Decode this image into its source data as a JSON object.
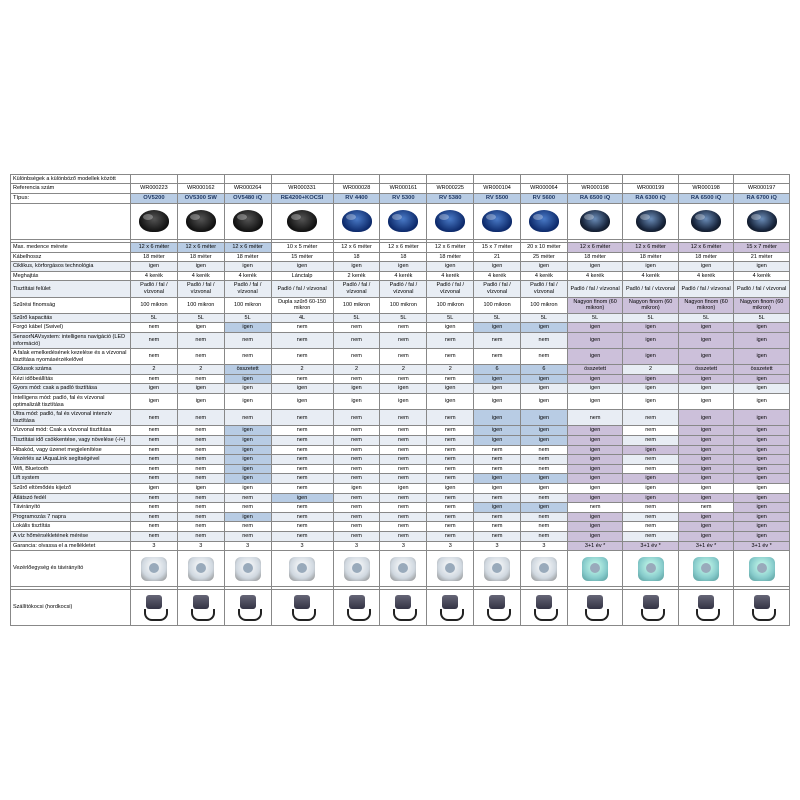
{
  "title_row": "Különbségek a különböző modellek között",
  "header_rows": [
    {
      "label": "Referencia szám",
      "vals": [
        "WR000223",
        "WR000162",
        "WR000264",
        "WR000331",
        "WR000028",
        "WR000161",
        "WR000225",
        "WR000104",
        "WR000064",
        "WR000198",
        "WR000199",
        "WR000198",
        "WR000197"
      ]
    },
    {
      "label": "Típus:",
      "vals": [
        "OV5200",
        "OV5300 SW",
        "OV5480 iQ",
        "RE4200+KOCSI",
        "RV 4400",
        "RV 5300",
        "RV 5380",
        "RV 5500",
        "RV 5600",
        "RA 6500 iQ",
        "RA 6300 iQ",
        "RA 6500 iQ",
        "RA 6700 iQ"
      ],
      "model": true
    }
  ],
  "robot_variants": [
    "dark",
    "dark",
    "dark",
    "dark",
    "blue",
    "blue",
    "blue",
    "blue",
    "blue",
    "",
    "",
    "",
    ""
  ],
  "spec_rows": [
    {
      "label": "Max. medence mérete",
      "vals": [
        "12 x 6 méter",
        "12 x 6 méter",
        "12 x 6 méter",
        "10 x 5 méter",
        "12 x 6 méter",
        "12 x 6 méter",
        "12 x 6 méter",
        "15 x 7 méter",
        "20 x 10 méter",
        "12 x 6 méter",
        "12 x 6 méter",
        "12 x 6 méter",
        "15 x 7 méter"
      ],
      "hl": {
        "0": "blue",
        "1": "blue",
        "2": "blue",
        "9": "lav",
        "10": "lav",
        "11": "lav",
        "12": "lav"
      }
    },
    {
      "label": "Kábelhossz",
      "vals": [
        "18 méter",
        "18 méter",
        "18 méter",
        "15 méter",
        "18",
        "18",
        "18 méter",
        "21",
        "25 méter",
        "18 méter",
        "18 méter",
        "18 méter",
        "21 méter"
      ]
    },
    {
      "label": "Ciklikus, körforgásos technológia",
      "vals": [
        "igen",
        "igen",
        "igen",
        "igen",
        "igen",
        "igen",
        "igen",
        "igen",
        "igen",
        "igen",
        "igen",
        "igen",
        "igen"
      ],
      "stripe": true
    },
    {
      "label": "Meghajtás",
      "vals": [
        "4 kerék",
        "4 kerék",
        "4 kerék",
        "Lánctalp",
        "2 kerék",
        "4 kerék",
        "4 kerék",
        "4 kerék",
        "4 kerék",
        "4 kerék",
        "4 kerék",
        "4 kerék",
        "4 kerék"
      ]
    },
    {
      "label": "Tisztítási felület",
      "vals": [
        "Padló / fal / vízvonal",
        "Padló / fal / vízvonal",
        "Padló / fal / vízvonal",
        "Padló / fal / vízvonal",
        "Padló / fal / vízvonal",
        "Padló / fal / vízvonal",
        "Padló / fal / vízvonal",
        "Padló / fal / vízvonal",
        "Padló / fal / vízvonal",
        "Padló / fal / vízvonal",
        "Padló / fal / vízvonal",
        "Padló / fal / vízvonal",
        "Padló / fal / vízvonal"
      ],
      "stripe": true
    },
    {
      "label": "Szűrési finomság",
      "vals": [
        "100 mikron",
        "100 mikron",
        "100 mikron",
        "Dupla szűrő 60-150 mikron",
        "100 mikron",
        "100 mikron",
        "100 mikron",
        "100 mikron",
        "100 mikron",
        "Nagyon finom (60 mikron)",
        "Nagyon finom (60 mikron)",
        "Nagyon finom (60 mikron)",
        "Nagyon finom (60 mikron)"
      ],
      "hl": {
        "9": "lav",
        "10": "lav",
        "11": "lav",
        "12": "lav"
      }
    },
    {
      "label": "Szűrő kapacitás",
      "vals": [
        "5L",
        "5L",
        "5L",
        "4L",
        "5L",
        "5L",
        "5L",
        "5L",
        "5L",
        "5L",
        "5L",
        "5L",
        "5L"
      ],
      "stripe": true
    },
    {
      "label": "Forgó kábel (Swivel)",
      "vals": [
        "nem",
        "igen",
        "igen",
        "nem",
        "nem",
        "nem",
        "igen",
        "igen",
        "igen",
        "igen",
        "igen",
        "igen",
        "igen"
      ],
      "hl": {
        "2": "blue",
        "7": "blue",
        "8": "blue",
        "9": "lav",
        "10": "lav",
        "11": "lav",
        "12": "lav"
      }
    },
    {
      "label": "SensorNAVsystem: intelligens navigáció (LED információ)",
      "vals": [
        "nem",
        "nem",
        "nem",
        "nem",
        "nem",
        "nem",
        "nem",
        "nem",
        "nem",
        "igen",
        "igen",
        "igen",
        "igen"
      ],
      "hl": {
        "9": "lav",
        "10": "lav",
        "11": "lav",
        "12": "lav"
      },
      "stripe": true
    },
    {
      "label": "A falak emelkedésének kezelése és a vízvonal tisztítása nyomásérzékelővel",
      "vals": [
        "nem",
        "nem",
        "nem",
        "nem",
        "nem",
        "nem",
        "nem",
        "nem",
        "nem",
        "igen",
        "igen",
        "igen",
        "igen"
      ],
      "hl": {
        "9": "lav",
        "10": "lav",
        "11": "lav",
        "12": "lav"
      }
    },
    {
      "label": "Ciklusok száma",
      "vals": [
        "2",
        "2",
        "összetett",
        "2",
        "2",
        "2",
        "2",
        "6",
        "6",
        "összetett",
        "2",
        "összetett",
        "összetett"
      ],
      "hl": {
        "2": "blue",
        "7": "blue",
        "8": "blue",
        "9": "lav",
        "11": "lav",
        "12": "lav"
      },
      "stripe": true
    },
    {
      "label": "Kézi időbeállítás",
      "vals": [
        "nem",
        "nem",
        "igen",
        "nem",
        "nem",
        "nem",
        "nem",
        "igen",
        "igen",
        "igen",
        "igen",
        "igen",
        "igen"
      ],
      "hl": {
        "2": "blue",
        "7": "blue",
        "8": "blue",
        "9": "lav",
        "10": "lav",
        "11": "lav",
        "12": "lav"
      }
    },
    {
      "label": "Gyors mód: csak a padló tisztítása",
      "vals": [
        "igen",
        "igen",
        "igen",
        "igen",
        "igen",
        "igen",
        "igen",
        "igen",
        "igen",
        "igen",
        "igen",
        "igen",
        "igen"
      ],
      "stripe": true
    },
    {
      "label": "Intelligens mód: padló, fal és vízvonal optimalizált tisztítása",
      "vals": [
        "igen",
        "igen",
        "igen",
        "igen",
        "igen",
        "igen",
        "igen",
        "igen",
        "igen",
        "igen",
        "igen",
        "igen",
        "igen"
      ]
    },
    {
      "label": "Ultra mód: padló, fal és vízvonal intenzív tisztítása",
      "vals": [
        "nem",
        "nem",
        "nem",
        "nem",
        "nem",
        "nem",
        "nem",
        "igen",
        "igen",
        "nem",
        "nem",
        "igen",
        "igen"
      ],
      "hl": {
        "7": "blue",
        "8": "blue",
        "11": "lav",
        "12": "lav"
      },
      "stripe": true
    },
    {
      "label": "Vízvonal mód: Csak a vízvonal tisztítása",
      "vals": [
        "nem",
        "nem",
        "igen",
        "nem",
        "nem",
        "nem",
        "nem",
        "igen",
        "igen",
        "igen",
        "nem",
        "igen",
        "igen"
      ],
      "hl": {
        "2": "blue",
        "7": "blue",
        "8": "blue",
        "9": "lav",
        "11": "lav",
        "12": "lav"
      }
    },
    {
      "label": "Tisztítási idő csökkentése, vagy növelése (-/+)",
      "vals": [
        "nem",
        "nem",
        "igen",
        "nem",
        "nem",
        "nem",
        "nem",
        "igen",
        "igen",
        "igen",
        "nem",
        "igen",
        "igen"
      ],
      "hl": {
        "2": "blue",
        "7": "blue",
        "8": "blue",
        "9": "lav",
        "11": "lav",
        "12": "lav"
      },
      "stripe": true
    },
    {
      "label": "Hibakód, vagy üzenet megjelenítése",
      "vals": [
        "nem",
        "nem",
        "igen",
        "nem",
        "nem",
        "nem",
        "nem",
        "nem",
        "nem",
        "igen",
        "igen",
        "igen",
        "igen"
      ],
      "hl": {
        "2": "blue",
        "9": "lav",
        "10": "lav",
        "11": "lav",
        "12": "lav"
      }
    },
    {
      "label": "Vezérlés az iAquaLink segítségével",
      "vals": [
        "nem",
        "nem",
        "igen",
        "nem",
        "nem",
        "nem",
        "nem",
        "nem",
        "nem",
        "igen",
        "nem",
        "igen",
        "igen"
      ],
      "hl": {
        "2": "blue",
        "9": "lav",
        "11": "lav",
        "12": "lav"
      },
      "stripe": true
    },
    {
      "label": "Wifi, Bluetooth",
      "vals": [
        "nem",
        "nem",
        "igen",
        "nem",
        "nem",
        "nem",
        "nem",
        "nem",
        "nem",
        "igen",
        "nem",
        "igen",
        "igen"
      ],
      "hl": {
        "2": "blue",
        "9": "lav",
        "11": "lav",
        "12": "lav"
      }
    },
    {
      "label": "Lift system",
      "vals": [
        "nem",
        "nem",
        "igen",
        "nem",
        "nem",
        "nem",
        "nem",
        "igen",
        "igen",
        "igen",
        "igen",
        "igen",
        "igen"
      ],
      "hl": {
        "2": "blue",
        "7": "blue",
        "8": "blue",
        "9": "lav",
        "10": "lav",
        "11": "lav",
        "12": "lav"
      },
      "stripe": true
    },
    {
      "label": "Szűrő eltömődés kijelző",
      "vals": [
        "igen",
        "igen",
        "igen",
        "nem",
        "igen",
        "igen",
        "igen",
        "igen",
        "igen",
        "igen",
        "igen",
        "igen",
        "igen"
      ]
    },
    {
      "label": "Átlátszó fedél",
      "vals": [
        "nem",
        "nem",
        "nem",
        "igen",
        "nem",
        "nem",
        "nem",
        "nem",
        "nem",
        "igen",
        "igen",
        "igen",
        "igen"
      ],
      "hl": {
        "3": "blue",
        "9": "lav",
        "10": "lav",
        "11": "lav",
        "12": "lav"
      },
      "stripe": true
    },
    {
      "label": "Távirányító",
      "vals": [
        "nem",
        "nem",
        "nem",
        "nem",
        "nem",
        "nem",
        "nem",
        "igen",
        "igen",
        "nem",
        "nem",
        "nem",
        "igen"
      ],
      "hl": {
        "7": "blue",
        "8": "blue",
        "12": "lav"
      }
    },
    {
      "label": "Programozás 7 napra",
      "vals": [
        "nem",
        "nem",
        "igen",
        "nem",
        "nem",
        "nem",
        "nem",
        "nem",
        "nem",
        "igen",
        "nem",
        "igen",
        "igen"
      ],
      "hl": {
        "2": "blue",
        "9": "lav",
        "11": "lav",
        "12": "lav"
      },
      "stripe": true
    },
    {
      "label": "Lokális tisztítás",
      "vals": [
        "nem",
        "nem",
        "nem",
        "nem",
        "nem",
        "nem",
        "nem",
        "nem",
        "nem",
        "igen",
        "nem",
        "igen",
        "igen"
      ],
      "hl": {
        "9": "lav",
        "11": "lav",
        "12": "lav"
      }
    },
    {
      "label": "A víz hőmérsékletének mérése",
      "vals": [
        "nem",
        "nem",
        "nem",
        "nem",
        "nem",
        "nem",
        "nem",
        "nem",
        "nem",
        "igen",
        "nem",
        "igen",
        "igen"
      ],
      "hl": {
        "9": "lav",
        "11": "lav",
        "12": "lav"
      },
      "stripe": true
    },
    {
      "label": "Garancia: olvassa el a mellékletet",
      "vals": [
        "3",
        "3",
        "3",
        "3",
        "3",
        "3",
        "3",
        "3",
        "3",
        "3+1 év *",
        "3+1 év *",
        "3+1 év *",
        "3+1 év *"
      ],
      "hl": {
        "9": "lav",
        "10": "lav",
        "11": "lav",
        "12": "lav"
      }
    }
  ],
  "ctrl_row_label": "Vezérlőegység és távirányító",
  "ctrl_variants": [
    "",
    "",
    "",
    "",
    "",
    "",
    "",
    "",
    "",
    "teal",
    "teal",
    "teal",
    "teal"
  ],
  "cart_row_label": "Szállítókocsi (hordkocsi)",
  "colors": {
    "h_blue": "#b8cce4",
    "h_lav": "#ccc0da",
    "stripe": "#e8edf4",
    "border": "#888888"
  }
}
